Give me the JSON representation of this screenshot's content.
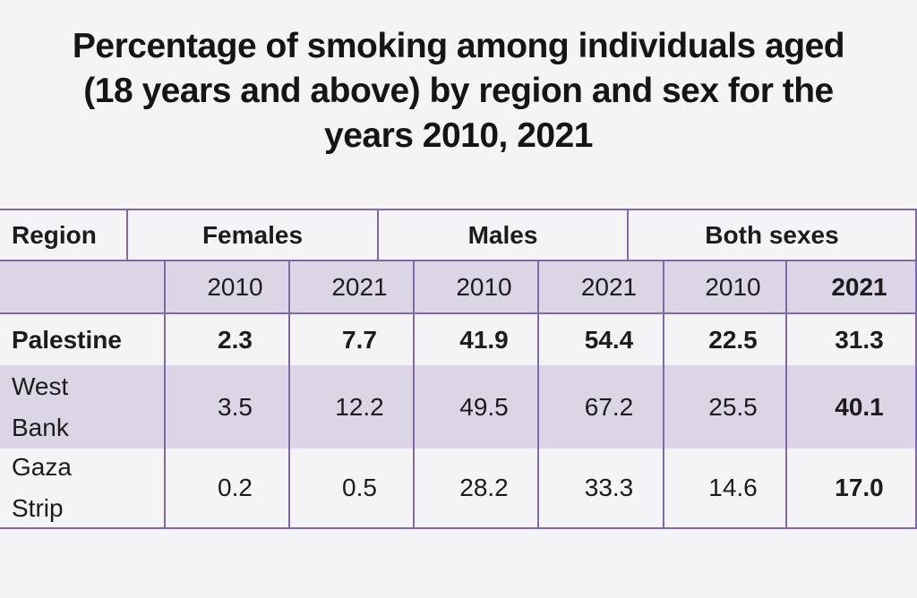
{
  "title_lines": [
    "Percentage of smoking among individuals aged",
    "(18 years and above) by region and sex for the",
    "years 2010, 2021"
  ],
  "colors": {
    "page_bg": "#f4f3f5",
    "band_purple": "#dcd5e6",
    "border_purple": "#8069a7",
    "text": "#1c1b1e"
  },
  "table": {
    "group_header": {
      "region_label": "Region",
      "groups": [
        "Females",
        "Males",
        "Both sexes"
      ]
    },
    "year_header": [
      "2010",
      "2021",
      "2010",
      "2021",
      "2010",
      "2021"
    ],
    "rows": [
      {
        "region": "Palestine",
        "values": [
          "2.3",
          "7.7",
          "41.9",
          "54.4",
          "22.5",
          "31.3"
        ]
      },
      {
        "region": "West Bank",
        "values": [
          "3.5",
          "12.2",
          "49.5",
          "67.2",
          "25.5",
          "40.1"
        ]
      },
      {
        "region": "Gaza Strip",
        "values": [
          "0.2",
          "0.5",
          "28.2",
          "33.3",
          "14.6",
          "17.0"
        ]
      }
    ]
  },
  "chart_data": {
    "type": "table",
    "title": "Percentage of smoking among individuals aged (18 years and above) by region and sex for the years 2010, 2021",
    "column_groups": [
      "Females",
      "Males",
      "Both sexes"
    ],
    "years": [
      "2010",
      "2021"
    ],
    "categories": [
      "Palestine",
      "West Bank",
      "Gaza Strip"
    ],
    "series": [
      {
        "name": "Females 2010",
        "values": [
          2.3,
          3.5,
          0.2
        ]
      },
      {
        "name": "Females 2021",
        "values": [
          7.7,
          12.2,
          0.5
        ]
      },
      {
        "name": "Males 2010",
        "values": [
          41.9,
          49.5,
          28.2
        ]
      },
      {
        "name": "Males 2021",
        "values": [
          54.4,
          67.2,
          33.3
        ]
      },
      {
        "name": "Both sexes 2010",
        "values": [
          22.5,
          25.5,
          14.6
        ]
      },
      {
        "name": "Both sexes 2021",
        "values": [
          31.3,
          40.1,
          17.0
        ]
      }
    ]
  }
}
